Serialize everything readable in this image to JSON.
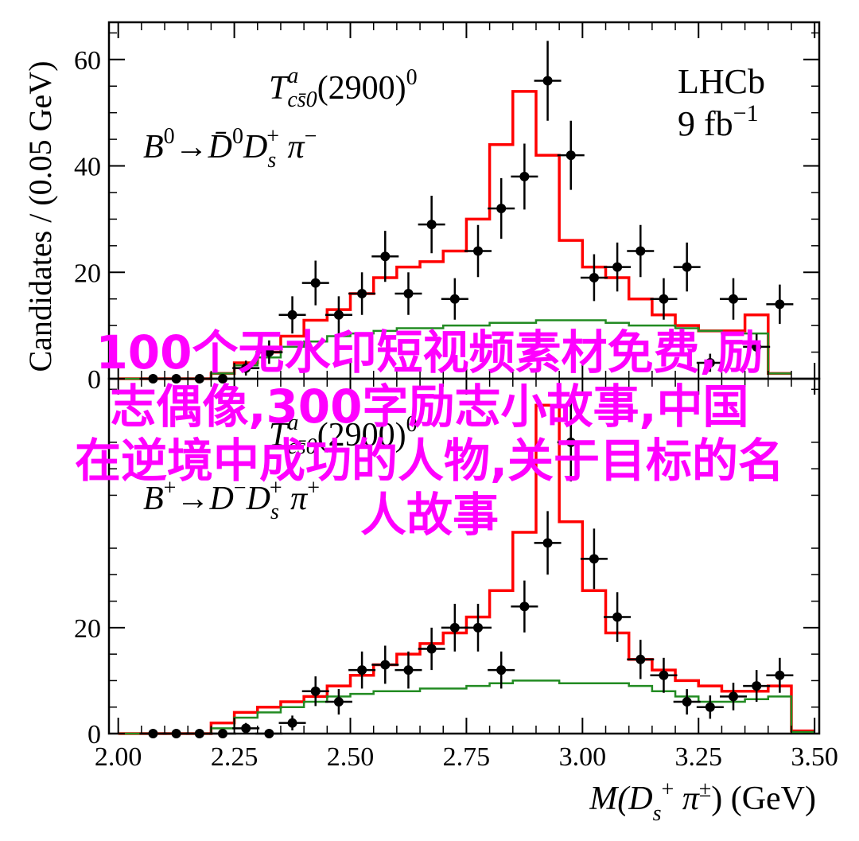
{
  "colors": {
    "total_fit": "#ff0000",
    "component": "#228b22",
    "data": "#000000",
    "overlay_text": "#ff00ff",
    "axes": "#000000"
  },
  "x_axis": {
    "label_parts": [
      "M(",
      "D",
      "s",
      "+",
      " π",
      "±",
      ") (GeV)"
    ],
    "range": [
      1.98,
      3.51
    ],
    "ticks": [
      {
        "value": 2.0,
        "label": "2.00"
      },
      {
        "value": 2.25,
        "label": "2.25"
      },
      {
        "value": 2.5,
        "label": "2.50"
      },
      {
        "value": 2.75,
        "label": "2.75"
      },
      {
        "value": 3.0,
        "label": "3.00"
      },
      {
        "value": 3.25,
        "label": "3.25"
      },
      {
        "value": 3.5,
        "label": "3.50"
      }
    ]
  },
  "y_axis_label": "Candidates / (0.05 GeV)",
  "experiment": {
    "name": "LHCb",
    "lumi": "9 fb",
    "lumi_exp": "−1"
  },
  "watermark_lines": [
    "100个无水印短视频素材免费,励",
    "志偶像,300字励志小故事,中国",
    "在逆境中成功的人物,关于目标的名",
    "人故事"
  ],
  "chart_data": [
    {
      "type": "line",
      "panel": "top",
      "state_label": {
        "T": "T",
        "sup": "a",
        "sub": "cs̄0",
        "mass": "(2900)",
        "charge": "0"
      },
      "decay_label": {
        "B": "B",
        "Bcharge": "0",
        "arrow": "→",
        "D": "D̄",
        "Dcharge": "0",
        "Ds": "D",
        "Dsub": "s",
        "Dsup": "+",
        "pi": " π",
        "pisup": "−"
      },
      "ylim": [
        0,
        67
      ],
      "yticks": [
        0,
        20,
        40,
        60
      ],
      "bin_edges": [
        2.0,
        2.05,
        2.1,
        2.15,
        2.2,
        2.25,
        2.3,
        2.35,
        2.4,
        2.45,
        2.5,
        2.55,
        2.6,
        2.65,
        2.7,
        2.75,
        2.8,
        2.85,
        2.9,
        2.95,
        3.0,
        3.05,
        3.1,
        3.15,
        3.2,
        3.25,
        3.3,
        3.35,
        3.4,
        3.45
      ],
      "data_points": {
        "x": [
          2.075,
          2.125,
          2.175,
          2.225,
          2.275,
          2.325,
          2.375,
          2.425,
          2.475,
          2.525,
          2.575,
          2.625,
          2.675,
          2.725,
          2.775,
          2.825,
          2.875,
          2.925,
          2.975,
          3.025,
          3.075,
          3.125,
          3.175,
          3.225,
          3.275,
          3.325,
          3.375,
          3.425
        ],
        "y": [
          0,
          0,
          0,
          0,
          2,
          5,
          12,
          18,
          12,
          16,
          23,
          16,
          29,
          15,
          24,
          32,
          38,
          56,
          42,
          19,
          21,
          24,
          15,
          21,
          3,
          15,
          6,
          14
        ],
        "yerr": [
          0,
          0,
          0,
          0,
          1.4,
          2.2,
          3.5,
          4.2,
          3.5,
          4.0,
          4.8,
          4.0,
          5.4,
          3.9,
          4.9,
          5.7,
          6.2,
          7.5,
          6.5,
          4.4,
          4.6,
          4.9,
          3.9,
          4.6,
          1.7,
          3.9,
          2.4,
          3.7
        ]
      },
      "series": [
        {
          "name": "",
          "color": "#ff0000",
          "values": [
            0,
            0,
            0,
            0,
            1,
            3,
            5,
            8,
            11,
            13,
            16,
            19,
            21,
            22,
            24,
            30,
            44,
            54,
            42,
            26,
            21,
            19,
            15,
            12,
            10,
            9,
            9,
            12,
            1
          ]
        },
        {
          "name": "",
          "color": "#228b22",
          "values": [
            0,
            0,
            0,
            0,
            1,
            2.5,
            4,
            6,
            7,
            8,
            8.5,
            9,
            9.5,
            9.5,
            10,
            10,
            10.5,
            10.5,
            11,
            11,
            11,
            10.5,
            10,
            10,
            9.5,
            9,
            8.5,
            8.5,
            1
          ]
        }
      ]
    },
    {
      "type": "line",
      "panel": "bottom",
      "state_label": {
        "T": "T",
        "sup": "a",
        "sub": "cs̄0",
        "mass": "(2900)",
        "charge": "0"
      },
      "decay_label": {
        "B": "B",
        "Bcharge": "+",
        "arrow": "→",
        "D": "D",
        "Dcharge": "−",
        "Ds": "D",
        "Dsub": "s",
        "Dsup": "+",
        "pi": " π",
        "pisup": "+"
      },
      "ylim": [
        0,
        67
      ],
      "yticks": [
        0,
        20
      ],
      "bin_edges": [
        2.0,
        2.05,
        2.1,
        2.15,
        2.2,
        2.25,
        2.3,
        2.35,
        2.4,
        2.45,
        2.5,
        2.55,
        2.6,
        2.65,
        2.7,
        2.75,
        2.8,
        2.85,
        2.9,
        2.95,
        3.0,
        3.05,
        3.1,
        3.15,
        3.2,
        3.25,
        3.3,
        3.35,
        3.4,
        3.45
      ],
      "data_points": {
        "x": [
          2.075,
          2.125,
          2.175,
          2.225,
          2.275,
          2.325,
          2.375,
          2.425,
          2.475,
          2.525,
          2.575,
          2.625,
          2.675,
          2.725,
          2.775,
          2.825,
          2.875,
          2.925,
          2.975,
          3.025,
          3.075,
          3.125,
          3.175,
          3.225,
          3.275,
          3.325,
          3.375,
          3.425
        ],
        "y": [
          0,
          0,
          0,
          0,
          1,
          0,
          2,
          8,
          6,
          12,
          13,
          12,
          16,
          20,
          20,
          12,
          24,
          36,
          55,
          33,
          22,
          14,
          11,
          6,
          5,
          7,
          9,
          11
        ],
        "yerr": [
          0,
          0,
          0,
          0,
          1.0,
          0,
          1.4,
          2.8,
          2.4,
          3.5,
          3.6,
          3.5,
          4.0,
          4.5,
          4.5,
          3.5,
          4.9,
          6.0,
          7.4,
          5.7,
          4.7,
          3.7,
          3.3,
          2.4,
          2.2,
          2.6,
          3.0,
          3.3
        ]
      },
      "series": [
        {
          "name": "",
          "color": "#ff0000",
          "values": [
            0,
            0,
            0,
            0,
            2,
            4,
            5,
            6,
            7,
            9,
            11,
            13,
            15,
            17,
            19,
            22,
            27,
            38,
            62,
            40,
            27,
            19,
            14,
            12,
            10,
            9,
            8,
            8,
            9,
            0.5
          ]
        },
        {
          "name": "",
          "color": "#228b22",
          "values": [
            0,
            0,
            0,
            0,
            1,
            3,
            4,
            5,
            6,
            7,
            7.5,
            8,
            8,
            8.5,
            8.5,
            9,
            9.5,
            10,
            10,
            9.5,
            9.5,
            9.5,
            9,
            8,
            7,
            6,
            6,
            6.5,
            7,
            0.3
          ]
        }
      ]
    }
  ]
}
